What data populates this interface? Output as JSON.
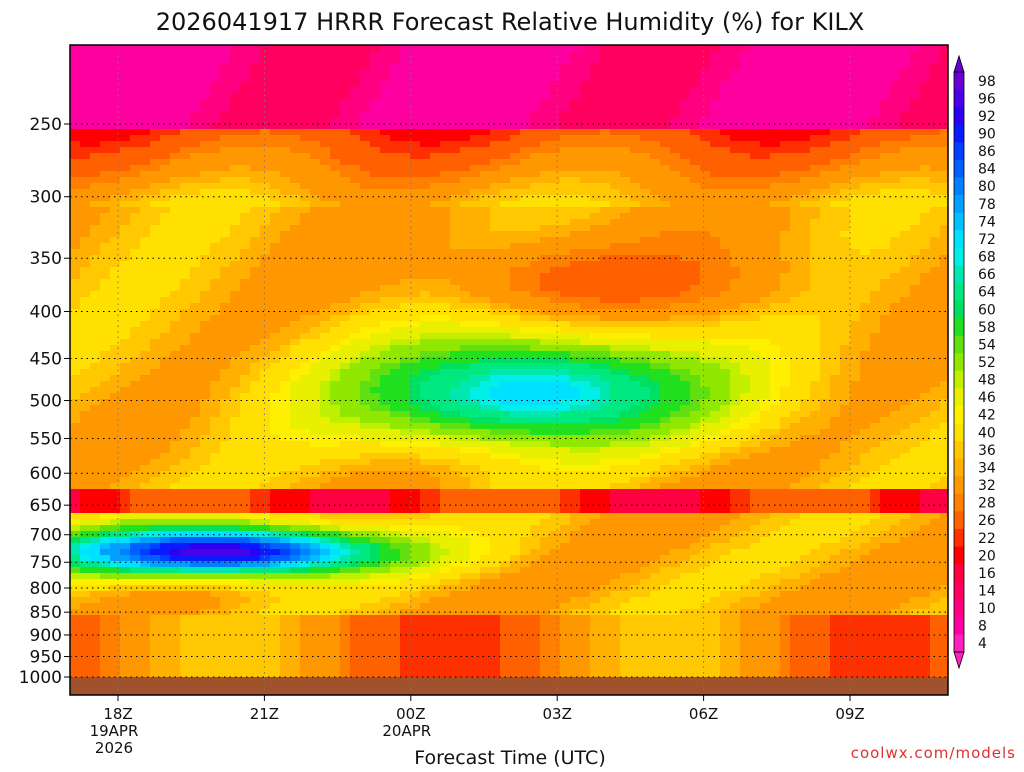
{
  "chart_data": {
    "type": "heatmap",
    "title": "2026041917 HRRR Forecast Relative Humidity (%) for KILX",
    "xlabel": "Forecast Time (UTC)",
    "ylabel": "",
    "y_scale": "log",
    "y_axis_inverted": true,
    "ylim": [
      1000,
      200
    ],
    "x_ticks": [
      {
        "label": "18Z",
        "sub1": "19APR",
        "sub2": "2026",
        "hour": 0
      },
      {
        "label": "21Z",
        "sub1": "",
        "sub2": "",
        "hour": 3
      },
      {
        "label": "00Z",
        "sub1": "20APR",
        "sub2": "",
        "hour": 6
      },
      {
        "label": "03Z",
        "sub1": "",
        "sub2": "",
        "hour": 9
      },
      {
        "label": "06Z",
        "sub1": "",
        "sub2": "",
        "hour": 12
      },
      {
        "label": "09Z",
        "sub1": "",
        "sub2": "",
        "hour": 15
      }
    ],
    "y_ticks": [
      250,
      300,
      350,
      400,
      450,
      500,
      550,
      600,
      650,
      700,
      750,
      800,
      850,
      900,
      950,
      1000
    ],
    "grid": true,
    "colorbar": {
      "labels": [
        98,
        96,
        92,
        90,
        86,
        84,
        80,
        78,
        74,
        72,
        68,
        66,
        64,
        60,
        58,
        54,
        52,
        48,
        46,
        42,
        40,
        36,
        34,
        32,
        28,
        26,
        22,
        20,
        16,
        14,
        10,
        8,
        4
      ],
      "colors": [
        "#6b00d6",
        "#4b00e8",
        "#2c00f0",
        "#0a1aff",
        "#0040ff",
        "#0060ff",
        "#0080ff",
        "#00a0ff",
        "#00c0ff",
        "#00e0ff",
        "#00f0e8",
        "#00e8b0",
        "#00e880",
        "#00e060",
        "#20e020",
        "#60e010",
        "#90e800",
        "#c0f000",
        "#e8f000",
        "#fff000",
        "#ffe000",
        "#ffc800",
        "#ffb000",
        "#ff9800",
        "#ff8000",
        "#ff6000",
        "#ff3000",
        "#ff0000",
        "#ff0040",
        "#ff0060",
        "#ff0080",
        "#ff00a0",
        "#ff20c0"
      ],
      "placement": "right"
    },
    "features": [
      {
        "desc": "moist core",
        "hour_center": 8.5,
        "p_center": 490,
        "hour_sd": 4.0,
        "p_sd": 70,
        "rh": 70
      },
      {
        "desc": "low-level saturated layer",
        "hour_center": 2.0,
        "p_center": 730,
        "hour_sd": 3.5,
        "p_sd": 45,
        "rh": 94
      },
      {
        "desc": "dry layer aloft",
        "hour_center": 10.0,
        "p_center": 370,
        "hour_sd": 3.5,
        "p_sd": 40,
        "rh": 24
      }
    ],
    "ground_color": "#a0522d"
  },
  "credit": "coolwx.com/models"
}
